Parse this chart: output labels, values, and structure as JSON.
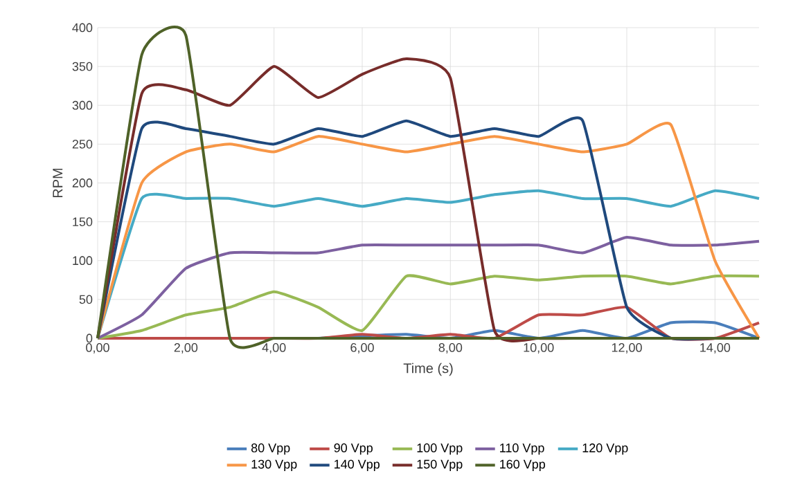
{
  "chart_data": {
    "type": "line",
    "xlabel": "Time (s)",
    "ylabel": "RPM",
    "x": [
      0,
      1,
      2,
      3,
      4,
      5,
      6,
      7,
      8,
      9,
      10,
      11,
      12,
      13,
      14,
      15
    ],
    "xlim": [
      0,
      15
    ],
    "ylim": [
      0,
      400
    ],
    "xticks": [
      {
        "value": 0,
        "label": "0,00"
      },
      {
        "value": 2,
        "label": "2,00"
      },
      {
        "value": 4,
        "label": "4,00"
      },
      {
        "value": 6,
        "label": "6,00"
      },
      {
        "value": 8,
        "label": "8,00"
      },
      {
        "value": 10,
        "label": "10,00"
      },
      {
        "value": 12,
        "label": "12,00"
      },
      {
        "value": 14,
        "label": "14,00"
      }
    ],
    "yticks": [
      0,
      50,
      100,
      150,
      200,
      250,
      300,
      350,
      400
    ],
    "grid": true,
    "legend": "bottom",
    "marker": "none",
    "line_style": "solid",
    "series": [
      {
        "name": "80 Vpp",
        "color": "#4a7ebb",
        "values": [
          null,
          null,
          null,
          null,
          null,
          0,
          3,
          5,
          0,
          10,
          0,
          10,
          0,
          20,
          20,
          0
        ]
      },
      {
        "name": "90 Vpp",
        "color": "#be4b48",
        "values": [
          0,
          0,
          0,
          0,
          0,
          0,
          5,
          0,
          5,
          0,
          30,
          30,
          40,
          0,
          0,
          20
        ]
      },
      {
        "name": "100 Vpp",
        "color": "#98b954",
        "values": [
          0,
          10,
          30,
          40,
          60,
          40,
          10,
          80,
          70,
          80,
          75,
          80,
          80,
          70,
          80,
          80
        ]
      },
      {
        "name": "110 Vpp",
        "color": "#7d60a0",
        "values": [
          0,
          30,
          90,
          110,
          110,
          110,
          120,
          120,
          120,
          120,
          120,
          110,
          130,
          120,
          120,
          125
        ]
      },
      {
        "name": "120 Vpp",
        "color": "#46aac5",
        "values": [
          0,
          180,
          180,
          180,
          170,
          180,
          170,
          180,
          175,
          185,
          190,
          180,
          180,
          170,
          190,
          180
        ]
      },
      {
        "name": "130 Vpp",
        "color": "#f79646",
        "values": [
          0,
          200,
          240,
          250,
          240,
          260,
          250,
          240,
          250,
          260,
          250,
          240,
          250,
          275,
          100,
          0
        ]
      },
      {
        "name": "140 Vpp",
        "color": "#1f497d",
        "values": [
          0,
          270,
          270,
          260,
          250,
          270,
          260,
          280,
          260,
          270,
          260,
          280,
          40,
          0,
          0,
          0
        ]
      },
      {
        "name": "150 Vpp",
        "color": "#772c2a",
        "values": [
          0,
          315,
          320,
          300,
          350,
          310,
          340,
          360,
          335,
          10,
          0,
          0,
          0,
          0,
          0,
          0
        ]
      },
      {
        "name": "160 Vpp",
        "color": "#4f6228",
        "values": [
          0,
          365,
          390,
          0,
          0,
          0,
          0,
          0,
          0,
          0,
          0,
          0,
          0,
          0,
          0,
          0
        ]
      }
    ]
  }
}
